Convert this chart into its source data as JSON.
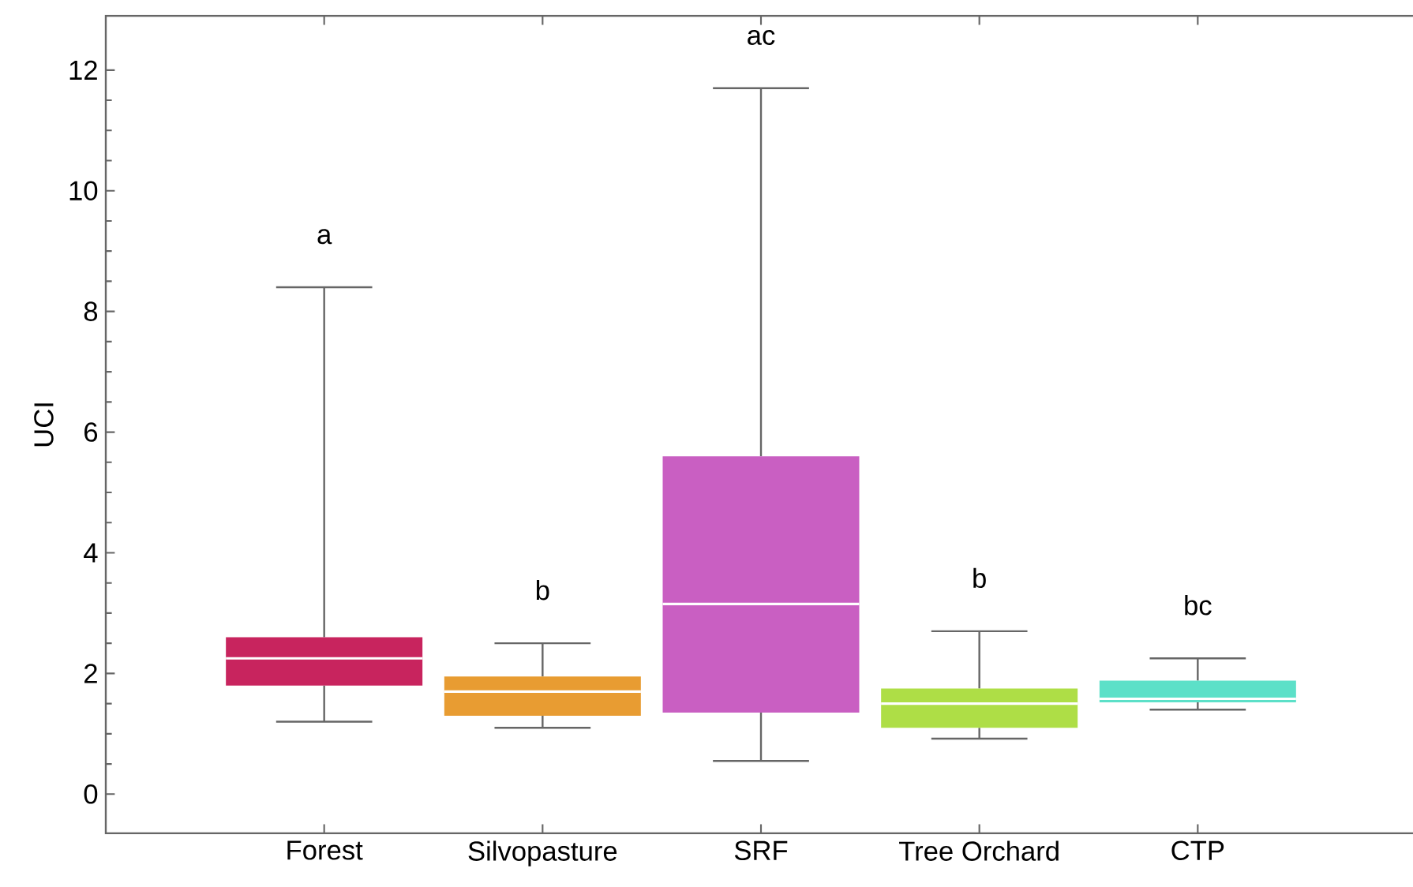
{
  "chart_data": {
    "type": "box",
    "ylabel": "UCI",
    "categories": [
      "Forest",
      "Silvopasture",
      "SRF",
      "Tree Orchard",
      "CTP"
    ],
    "colors": [
      "#c8245e",
      "#e89c32",
      "#c95fc2",
      "#aede46",
      "#5ce0c8"
    ],
    "boxes": [
      {
        "low": 1.2,
        "q1": 1.8,
        "median": 2.25,
        "q3": 2.6,
        "high": 8.4
      },
      {
        "low": 1.1,
        "q1": 1.3,
        "median": 1.7,
        "q3": 1.95,
        "high": 2.5
      },
      {
        "low": 0.55,
        "q1": 1.35,
        "median": 3.15,
        "q3": 5.6,
        "high": 11.7
      },
      {
        "low": 0.92,
        "q1": 1.1,
        "median": 1.5,
        "q3": 1.75,
        "high": 2.7
      },
      {
        "low": 1.4,
        "q1": 1.52,
        "median": 1.58,
        "q3": 1.88,
        "high": 2.25
      }
    ],
    "ylim": [
      -0.65,
      12.9
    ],
    "yticks": [
      0,
      2,
      4,
      6,
      8,
      10,
      12
    ],
    "grid": false,
    "annotations": [
      "a",
      "b",
      "ac",
      "b",
      "bc"
    ]
  }
}
